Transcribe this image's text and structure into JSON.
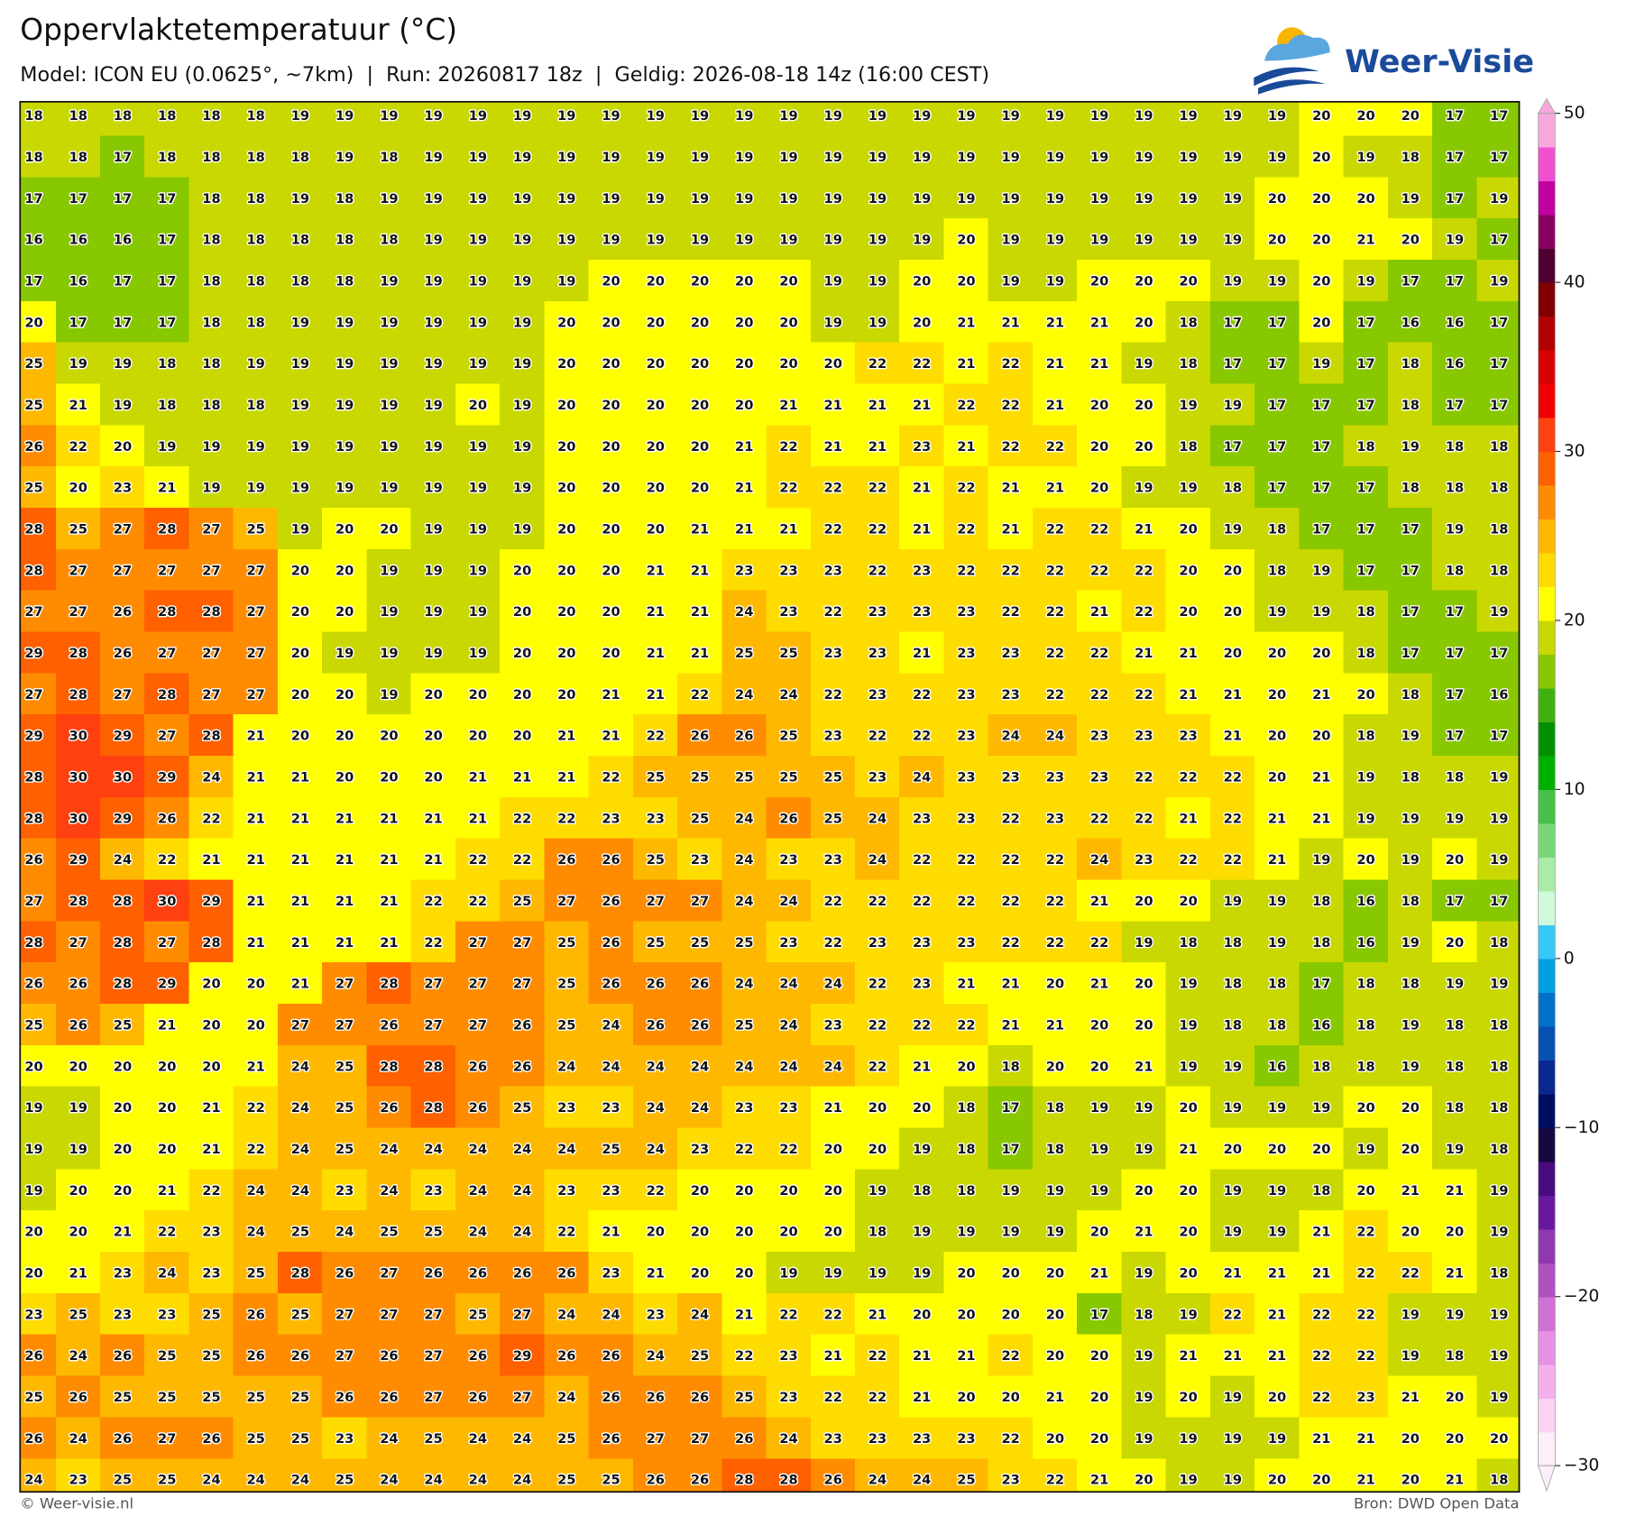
{
  "header": {
    "title": "Oppervlaktetemperatuur (°C)",
    "subtitle": "Model: ICON EU (0.0625°, ~7km)  |  Run: 20260817 18z  |  Geldig: 2026-08-18 14z (16:00 CEST)",
    "logo": "Weer-Visie"
  },
  "grid": {
    "rows": [
      [
        18,
        18,
        18,
        18,
        18,
        18,
        19,
        19,
        19,
        19,
        19,
        19,
        19,
        19,
        19,
        19,
        19,
        19,
        19,
        19,
        19,
        19,
        19,
        19,
        19,
        19,
        19,
        19,
        19,
        20,
        20,
        20,
        17,
        17
      ],
      [
        18,
        18,
        17,
        18,
        18,
        18,
        18,
        19,
        18,
        19,
        19,
        19,
        19,
        19,
        19,
        19,
        19,
        19,
        19,
        19,
        19,
        19,
        19,
        19,
        19,
        19,
        19,
        19,
        19,
        20,
        19,
        18,
        17,
        17
      ],
      [
        17,
        17,
        17,
        17,
        18,
        18,
        19,
        18,
        19,
        19,
        19,
        19,
        19,
        19,
        19,
        19,
        19,
        19,
        19,
        19,
        19,
        19,
        19,
        19,
        19,
        19,
        19,
        19,
        20,
        20,
        20,
        19,
        17,
        19
      ],
      [
        16,
        16,
        16,
        17,
        18,
        18,
        18,
        18,
        18,
        19,
        19,
        19,
        19,
        19,
        19,
        19,
        19,
        19,
        19,
        19,
        19,
        20,
        19,
        19,
        19,
        19,
        19,
        19,
        20,
        20,
        21,
        20,
        19,
        17
      ],
      [
        17,
        16,
        17,
        17,
        18,
        18,
        18,
        18,
        19,
        19,
        19,
        19,
        19,
        20,
        20,
        20,
        20,
        20,
        19,
        19,
        20,
        20,
        19,
        19,
        20,
        20,
        20,
        19,
        19,
        20,
        19,
        17,
        17,
        19
      ],
      [
        20,
        17,
        17,
        17,
        18,
        18,
        19,
        19,
        19,
        19,
        19,
        19,
        20,
        20,
        20,
        20,
        20,
        20,
        19,
        19,
        20,
        21,
        21,
        21,
        21,
        20,
        18,
        17,
        17,
        20,
        17,
        16,
        16,
        17
      ],
      [
        25,
        19,
        19,
        18,
        18,
        19,
        19,
        19,
        19,
        19,
        19,
        19,
        20,
        20,
        20,
        20,
        20,
        20,
        20,
        22,
        22,
        21,
        22,
        21,
        21,
        19,
        18,
        17,
        17,
        19,
        17,
        18,
        16,
        17
      ],
      [
        25,
        21,
        19,
        18,
        18,
        18,
        19,
        19,
        19,
        19,
        20,
        19,
        20,
        20,
        20,
        20,
        20,
        21,
        21,
        21,
        21,
        22,
        22,
        21,
        20,
        20,
        19,
        19,
        17,
        17,
        17,
        18,
        17,
        17
      ],
      [
        26,
        22,
        20,
        19,
        19,
        19,
        19,
        19,
        19,
        19,
        19,
        19,
        20,
        20,
        20,
        20,
        21,
        22,
        21,
        21,
        23,
        21,
        22,
        22,
        20,
        20,
        18,
        17,
        17,
        17,
        18,
        19,
        18,
        18
      ],
      [
        25,
        20,
        23,
        21,
        19,
        19,
        19,
        19,
        19,
        19,
        19,
        19,
        20,
        20,
        20,
        20,
        21,
        22,
        22,
        22,
        21,
        22,
        21,
        21,
        20,
        19,
        19,
        18,
        17,
        17,
        17,
        18,
        18,
        18
      ],
      [
        28,
        25,
        27,
        28,
        27,
        25,
        19,
        20,
        20,
        19,
        19,
        19,
        20,
        20,
        20,
        21,
        21,
        21,
        22,
        22,
        21,
        22,
        21,
        22,
        22,
        21,
        20,
        19,
        18,
        17,
        17,
        17,
        19,
        18
      ],
      [
        28,
        27,
        27,
        27,
        27,
        27,
        20,
        20,
        19,
        19,
        19,
        20,
        20,
        20,
        21,
        21,
        23,
        23,
        23,
        22,
        23,
        22,
        22,
        22,
        22,
        22,
        20,
        20,
        18,
        19,
        17,
        17,
        18,
        18
      ],
      [
        27,
        27,
        26,
        28,
        28,
        27,
        20,
        20,
        19,
        19,
        19,
        20,
        20,
        20,
        21,
        21,
        24,
        23,
        22,
        23,
        23,
        23,
        22,
        22,
        21,
        22,
        20,
        20,
        19,
        19,
        18,
        17,
        17,
        19
      ],
      [
        29,
        28,
        26,
        27,
        27,
        27,
        20,
        19,
        19,
        19,
        19,
        20,
        20,
        20,
        21,
        21,
        25,
        25,
        23,
        23,
        21,
        23,
        23,
        22,
        22,
        21,
        21,
        20,
        20,
        20,
        18,
        17,
        17,
        17
      ],
      [
        27,
        28,
        27,
        28,
        27,
        27,
        20,
        20,
        19,
        20,
        20,
        20,
        20,
        21,
        21,
        22,
        24,
        24,
        22,
        23,
        22,
        23,
        23,
        22,
        22,
        22,
        21,
        21,
        20,
        21,
        20,
        18,
        17,
        16
      ],
      [
        29,
        30,
        29,
        27,
        28,
        21,
        20,
        20,
        20,
        20,
        20,
        20,
        21,
        21,
        22,
        26,
        26,
        25,
        23,
        22,
        22,
        23,
        24,
        24,
        23,
        23,
        23,
        21,
        20,
        20,
        18,
        19,
        17,
        17
      ],
      [
        28,
        30,
        30,
        29,
        24,
        21,
        21,
        20,
        20,
        20,
        21,
        21,
        21,
        22,
        25,
        25,
        25,
        25,
        25,
        23,
        24,
        23,
        23,
        23,
        23,
        22,
        22,
        22,
        20,
        21,
        19,
        18,
        18,
        19
      ],
      [
        28,
        30,
        29,
        26,
        22,
        21,
        21,
        21,
        21,
        21,
        21,
        22,
        22,
        23,
        23,
        25,
        24,
        26,
        25,
        24,
        23,
        23,
        22,
        23,
        22,
        22,
        21,
        22,
        21,
        21,
        19,
        19,
        19,
        19
      ],
      [
        26,
        29,
        24,
        22,
        21,
        21,
        21,
        21,
        21,
        21,
        22,
        22,
        26,
        26,
        25,
        23,
        24,
        23,
        23,
        24,
        22,
        22,
        22,
        22,
        24,
        23,
        22,
        22,
        21,
        19,
        20,
        19,
        20,
        19
      ],
      [
        27,
        28,
        28,
        30,
        29,
        21,
        21,
        21,
        21,
        22,
        22,
        25,
        27,
        26,
        27,
        27,
        24,
        24,
        22,
        22,
        22,
        22,
        22,
        22,
        21,
        20,
        20,
        19,
        19,
        18,
        16,
        18,
        17,
        17
      ],
      [
        28,
        27,
        28,
        27,
        28,
        21,
        21,
        21,
        21,
        22,
        27,
        27,
        25,
        26,
        25,
        25,
        25,
        23,
        22,
        23,
        23,
        23,
        22,
        22,
        22,
        19,
        18,
        18,
        19,
        18,
        16,
        19,
        20,
        18
      ],
      [
        26,
        26,
        28,
        29,
        20,
        20,
        21,
        27,
        28,
        27,
        27,
        27,
        25,
        26,
        26,
        26,
        24,
        24,
        24,
        22,
        23,
        21,
        21,
        20,
        21,
        20,
        19,
        18,
        18,
        17,
        18,
        18,
        19,
        19
      ],
      [
        25,
        26,
        25,
        21,
        20,
        20,
        27,
        27,
        26,
        27,
        27,
        26,
        25,
        24,
        26,
        26,
        25,
        24,
        23,
        22,
        22,
        22,
        21,
        21,
        20,
        20,
        19,
        18,
        18,
        16,
        18,
        19,
        18,
        18
      ],
      [
        20,
        20,
        20,
        20,
        20,
        21,
        24,
        25,
        28,
        28,
        26,
        26,
        24,
        24,
        24,
        24,
        24,
        24,
        24,
        22,
        21,
        20,
        18,
        20,
        20,
        21,
        19,
        19,
        16,
        18,
        18,
        19,
        18,
        18
      ],
      [
        19,
        19,
        20,
        20,
        21,
        22,
        24,
        25,
        26,
        28,
        26,
        25,
        23,
        23,
        24,
        24,
        23,
        23,
        21,
        20,
        20,
        18,
        17,
        18,
        19,
        19,
        20,
        19,
        19,
        19,
        20,
        20,
        18,
        18
      ],
      [
        19,
        19,
        20,
        20,
        21,
        22,
        24,
        25,
        24,
        24,
        24,
        24,
        24,
        25,
        24,
        23,
        22,
        22,
        20,
        20,
        19,
        18,
        17,
        18,
        19,
        19,
        21,
        20,
        20,
        20,
        19,
        20,
        19,
        18
      ],
      [
        19,
        20,
        20,
        21,
        22,
        24,
        24,
        23,
        24,
        23,
        24,
        24,
        23,
        23,
        22,
        20,
        20,
        20,
        20,
        19,
        18,
        18,
        19,
        19,
        19,
        20,
        20,
        19,
        19,
        18,
        20,
        21,
        21,
        19
      ],
      [
        20,
        20,
        21,
        22,
        23,
        24,
        25,
        24,
        25,
        25,
        24,
        24,
        22,
        21,
        20,
        20,
        20,
        20,
        20,
        18,
        19,
        19,
        19,
        19,
        20,
        21,
        20,
        19,
        19,
        21,
        22,
        20,
        20,
        19
      ],
      [
        20,
        21,
        23,
        24,
        23,
        25,
        28,
        26,
        27,
        26,
        26,
        26,
        26,
        23,
        21,
        20,
        20,
        19,
        19,
        19,
        19,
        20,
        20,
        20,
        21,
        19,
        20,
        21,
        21,
        21,
        22,
        22,
        21,
        18
      ],
      [
        23,
        25,
        23,
        23,
        25,
        26,
        25,
        27,
        27,
        27,
        25,
        27,
        24,
        24,
        23,
        24,
        21,
        22,
        22,
        21,
        20,
        20,
        20,
        20,
        17,
        18,
        19,
        22,
        21,
        22,
        22,
        19,
        19,
        19
      ],
      [
        26,
        24,
        26,
        25,
        25,
        26,
        26,
        27,
        26,
        27,
        26,
        29,
        26,
        26,
        24,
        25,
        22,
        23,
        21,
        22,
        21,
        21,
        22,
        20,
        20,
        19,
        21,
        21,
        21,
        22,
        22,
        19,
        18,
        19
      ],
      [
        25,
        26,
        25,
        25,
        25,
        25,
        25,
        26,
        26,
        27,
        26,
        27,
        24,
        26,
        26,
        26,
        25,
        23,
        22,
        22,
        21,
        20,
        20,
        21,
        20,
        19,
        20,
        19,
        20,
        22,
        23,
        21,
        20,
        19
      ],
      [
        26,
        24,
        26,
        27,
        26,
        25,
        25,
        23,
        24,
        25,
        24,
        24,
        25,
        26,
        27,
        27,
        26,
        24,
        23,
        23,
        23,
        23,
        22,
        20,
        20,
        19,
        19,
        19,
        19,
        21,
        21,
        20,
        20,
        20
      ],
      [
        24,
        23,
        25,
        25,
        24,
        24,
        24,
        25,
        24,
        24,
        24,
        24,
        25,
        25,
        26,
        26,
        28,
        28,
        26,
        24,
        24,
        25,
        23,
        22,
        21,
        20,
        19,
        19,
        20,
        20,
        21,
        20,
        21,
        18
      ]
    ]
  },
  "colorbar": {
    "lim": [
      -30,
      50
    ],
    "ticks": [
      50,
      40,
      30,
      20,
      10,
      0,
      {
        "value": -10,
        "label": "−10"
      },
      {
        "value": -20,
        "label": "−20"
      },
      {
        "value": -30,
        "label": "−30"
      }
    ],
    "colors": [
      "#fdeefc",
      "#fad2f4",
      "#f4b0ec",
      "#e890e4",
      "#d070d4",
      "#b050c0",
      "#9038b0",
      "#6818a0",
      "#480c80",
      "#180840",
      "#000e60",
      "#082890",
      "#0850b0",
      "#0070c8",
      "#00a0e0",
      "#38c8f8",
      "#d0fadc",
      "#a8eca8",
      "#78d878",
      "#48c048",
      "#00b000",
      "#009000",
      "#40b010",
      "#88c800",
      "#c8d800",
      "#ffff00",
      "#ffdc00",
      "#ffb800",
      "#ff8c00",
      "#ff6000",
      "#ff4010",
      "#f00000",
      "#d80000",
      "#b00000",
      "#800000",
      "#500030",
      "#880060",
      "#c000a0",
      "#f050d0",
      "#f8a8dc"
    ]
  },
  "footer": {
    "left": "© Weer-visie.nl",
    "right": "Bron: DWD Open Data"
  }
}
